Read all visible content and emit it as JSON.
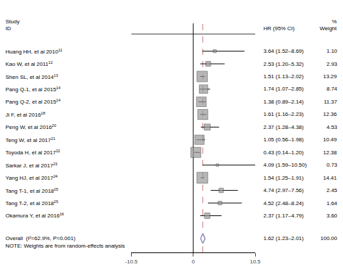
{
  "chart_data": {
    "type": "forest",
    "headers": {
      "study": [
        "Study",
        "ID"
      ],
      "estimate": [
        "HR (95% CI)"
      ],
      "weight": [
        "%",
        "Weight"
      ]
    },
    "categories": [
      "Huang HH, et al 2010",
      "Kao W, et al 2011",
      "Shen SL, et al 2014",
      "Pang Q-1, et al 2015",
      "Pang Q-2, et al 2015",
      "Ji F, et al 2016",
      "Peng W, et al 2016",
      "Teng W, et al 2017",
      "Toyoda H, et al 2017",
      "Sarkar J, et al 2017",
      "Yang HJ, et al 2017",
      "Tang T-1, et al 2018",
      "Tang T-2, et al 2018",
      "Okamura Y, et al 2016"
    ],
    "superscripts": [
      "11",
      "12",
      "13",
      "14",
      "14",
      "18",
      "20",
      "21",
      "22",
      "23",
      "24",
      "25",
      "25",
      "16"
    ],
    "values": [
      3.64,
      2.53,
      1.51,
      1.74,
      1.38,
      1.61,
      2.37,
      1.05,
      0.43,
      4.09,
      1.54,
      4.74,
      4.52,
      2.37
    ],
    "ci_low": [
      1.52,
      1.2,
      1.13,
      1.07,
      0.89,
      1.16,
      1.28,
      0.56,
      0.14,
      1.59,
      1.25,
      2.97,
      2.48,
      1.17
    ],
    "ci_high": [
      8.69,
      5.32,
      2.02,
      2.85,
      2.14,
      2.23,
      4.38,
      1.98,
      1.2,
      10.5,
      1.91,
      7.56,
      8.24,
      4.79
    ],
    "value_labels": [
      "3.64 (1.52–8.69)",
      "2.53 (1.20–5.32)",
      "1.51 (1.13–2.02)",
      "1.74 (1.07–2.85)",
      "1.38 (0.89–2.14)",
      "1.61 (1.16–2.23)",
      "2.37 (1.28–4.38)",
      "1.05 (0.56–1.98)",
      "0.43 (0.14–1.20)",
      "4.09 (1.59–10.50)",
      "1.54 (1.25–1.91)",
      "4.74 (2.97–7.56)",
      "4.52 (2.48–8.24)",
      "2.37 (1.17–4.79)"
    ],
    "weights": [
      1.1,
      2.93,
      13.29,
      8.74,
      11.37,
      12.36,
      4.53,
      10.49,
      12.38,
      0.73,
      14.41,
      2.45,
      1.64,
      3.6
    ],
    "weight_labels": [
      "1.10",
      "2.93",
      "13.29",
      "8.74",
      "11.37",
      "12.36",
      "4.53",
      "10.49",
      "12.38",
      "0.73",
      "14.41",
      "2.45",
      "1.64",
      "3.60"
    ],
    "color": "#999999",
    "overall": {
      "label": "Overall  (I²=62.9%, P=0.001)",
      "value": 1.62,
      "ci_low": 1.23,
      "ci_high": 2.01,
      "value_label": "1.62 (1.23–2.01)",
      "weight_label": "100.00",
      "color": "#8888bb"
    },
    "overall_line": {
      "color": "#cc7777",
      "line_style": "dashed"
    },
    "note": "NOTE: Weights are from random-effects analysis",
    "xlim": [
      -10.5,
      10.5
    ],
    "xticks": [
      -10.5,
      0,
      10.5
    ],
    "grid": false
  }
}
